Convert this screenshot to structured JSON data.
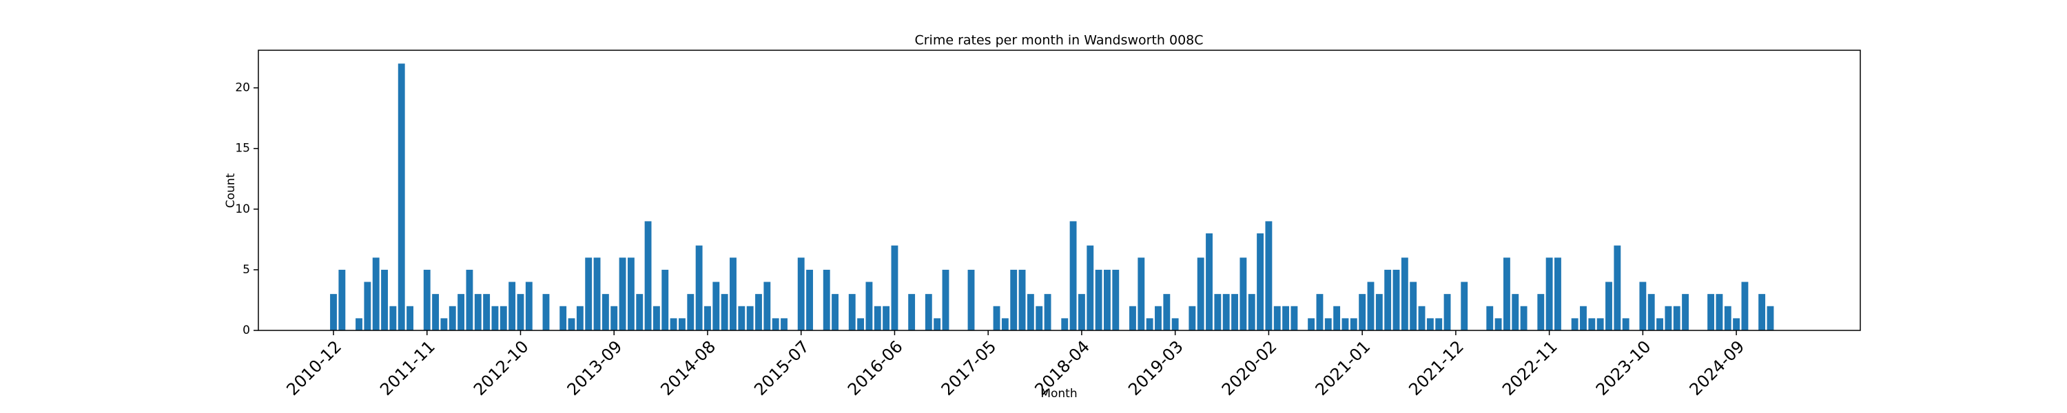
{
  "chart_data": {
    "type": "bar",
    "title": "Crime rates per month in Wandsworth 008C",
    "xlabel": "Month",
    "ylabel": "Count",
    "color": "#1f77b4",
    "categories": [
      "2010-12",
      null,
      null,
      null,
      null,
      null,
      null,
      null,
      null,
      null,
      null,
      "2011-11",
      null,
      null,
      null,
      null,
      null,
      null,
      null,
      null,
      null,
      null,
      "2012-10",
      null,
      null,
      null,
      null,
      null,
      null,
      null,
      null,
      null,
      null,
      "2013-09",
      null,
      null,
      null,
      null,
      null,
      null,
      null,
      null,
      null,
      null,
      "2014-08",
      null,
      null,
      null,
      null,
      null,
      null,
      null,
      null,
      null,
      null,
      "2015-07",
      null,
      null,
      null,
      null,
      null,
      null,
      null,
      null,
      null,
      null,
      "2016-06",
      null,
      null,
      null,
      null,
      null,
      null,
      null,
      null,
      null,
      null,
      "2017-05",
      null,
      null,
      null,
      null,
      null,
      null,
      null,
      null,
      null,
      null,
      "2018-04",
      null,
      null,
      null,
      null,
      null,
      null,
      null,
      null,
      null,
      null,
      "2019-03",
      null,
      null,
      null,
      null,
      null,
      null,
      null,
      null,
      null,
      null,
      "2020-02",
      null,
      null,
      null,
      null,
      null,
      null,
      null,
      null,
      null,
      null,
      "2021-01",
      null,
      null,
      null,
      null,
      null,
      null,
      null,
      null,
      null,
      null,
      "2021-12",
      null,
      null,
      null,
      null,
      null,
      null,
      null,
      null,
      null,
      null,
      "2022-11",
      null,
      null,
      null,
      null,
      null,
      null,
      null,
      null,
      null,
      null,
      "2023-10",
      null,
      null,
      null,
      null,
      null,
      null,
      null,
      null,
      null,
      null,
      "2024-09",
      null,
      null,
      null,
      null
    ],
    "values": [
      3,
      5,
      0,
      1,
      4,
      6,
      5,
      2,
      22,
      2,
      0,
      5,
      3,
      1,
      2,
      3,
      5,
      3,
      3,
      2,
      2,
      4,
      3,
      4,
      0,
      3,
      0,
      2,
      1,
      2,
      6,
      6,
      3,
      2,
      6,
      6,
      3,
      9,
      2,
      5,
      1,
      1,
      3,
      7,
      2,
      4,
      3,
      6,
      2,
      2,
      3,
      4,
      1,
      1,
      0,
      6,
      5,
      0,
      5,
      3,
      0,
      3,
      1,
      4,
      2,
      2,
      7,
      0,
      3,
      0,
      3,
      1,
      5,
      0,
      0,
      5,
      0,
      0,
      2,
      1,
      5,
      5,
      3,
      2,
      3,
      0,
      1,
      9,
      3,
      7,
      5,
      5,
      5,
      0,
      2,
      6,
      1,
      2,
      3,
      1,
      0,
      2,
      6,
      8,
      3,
      3,
      3,
      6,
      3,
      8,
      9,
      2,
      2,
      2,
      0,
      1,
      3,
      1,
      2,
      1,
      1,
      3,
      4,
      3,
      5,
      5,
      6,
      4,
      2,
      1,
      1,
      3,
      0,
      4,
      0,
      0,
      2,
      1,
      6,
      3,
      2,
      0,
      3,
      6,
      6,
      0,
      1,
      2,
      1,
      1,
      4,
      7,
      1,
      0,
      4,
      3,
      1,
      2,
      2,
      3,
      0,
      0,
      3,
      3,
      2,
      1,
      4,
      0,
      3,
      2
    ],
    "ylim": [
      0,
      23.1
    ],
    "yticks": [
      0,
      5,
      10,
      15,
      20
    ]
  }
}
